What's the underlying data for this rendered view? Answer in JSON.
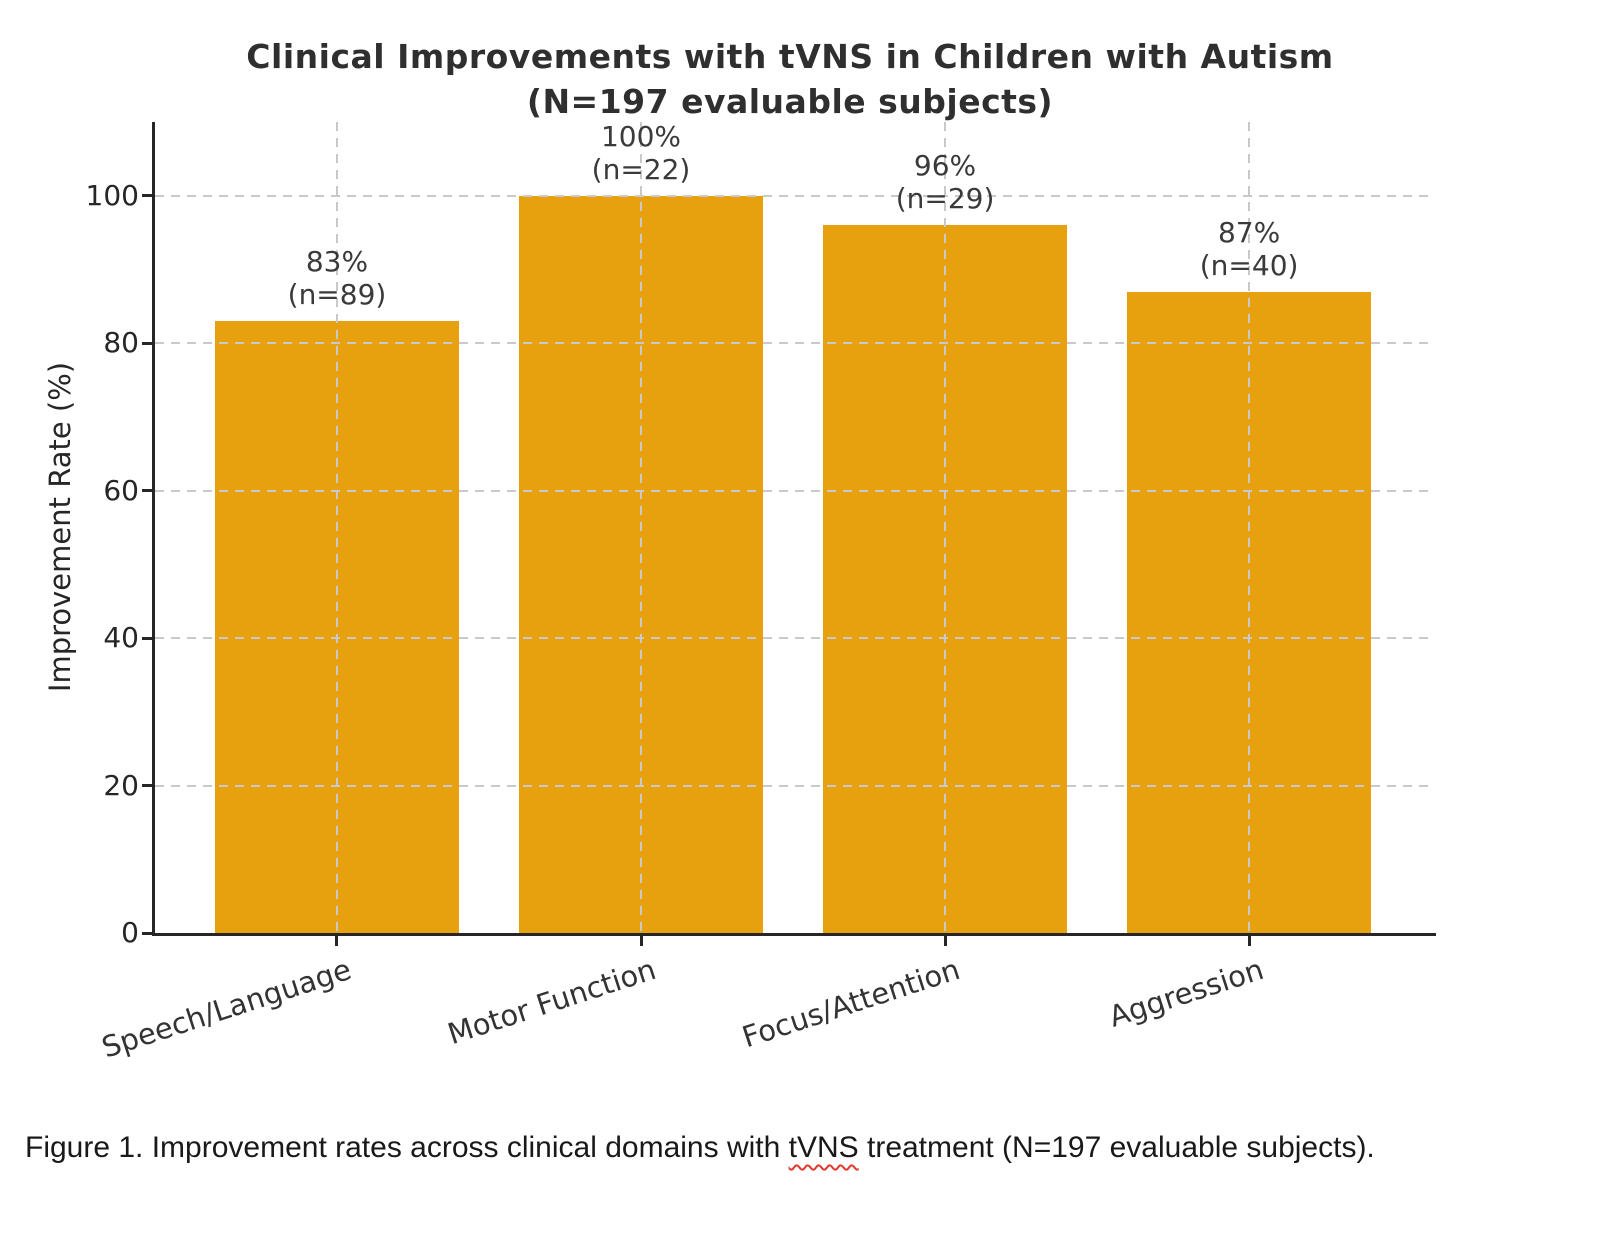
{
  "chart_data": {
    "type": "bar",
    "title_lines": [
      "Clinical Improvements with tVNS in Children with Autism",
      "(N=197 evaluable subjects)"
    ],
    "categories": [
      "Speech/Language",
      "Motor Function",
      "Focus/Attention",
      "Aggression"
    ],
    "values": [
      83,
      100,
      96,
      87
    ],
    "n_values": [
      89,
      22,
      29,
      40
    ],
    "annotations": [
      [
        "83%",
        "(n=89)"
      ],
      [
        "100%",
        "(n=22)"
      ],
      [
        "96%",
        "(n=29)"
      ],
      [
        "87%",
        "(n=40)"
      ]
    ],
    "xlabel": "",
    "ylabel": "Improvement Rate (%)",
    "yticks": [
      0,
      20,
      40,
      60,
      80,
      100
    ],
    "ylim": [
      0,
      110
    ],
    "grid": true,
    "legend": "none",
    "bar_color": "#E8A10E",
    "grid_color": "#c9c9c9",
    "axis_color": "#262626",
    "annotation_color": "#3a3a3a"
  },
  "caption": {
    "prefix": "Figure 1. Improvement rates across clinical domains with ",
    "highlight_word": "tVNS",
    "suffix": " treatment (N=197 evaluable subjects)."
  }
}
